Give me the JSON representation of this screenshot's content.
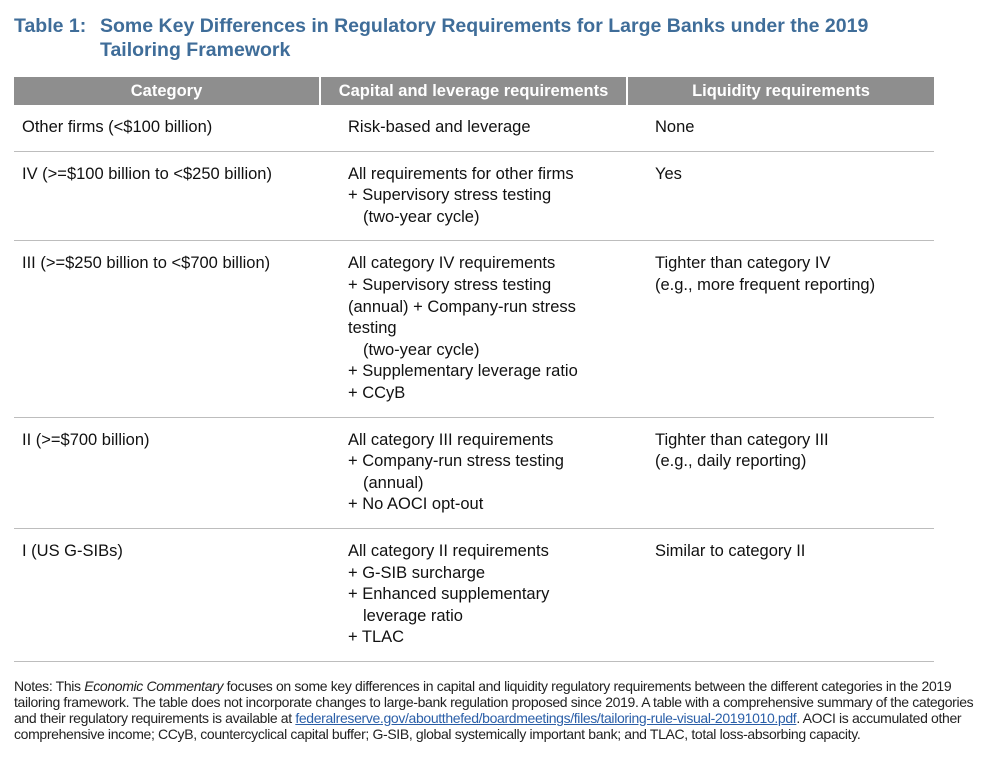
{
  "title": {
    "label": "Table 1:",
    "text": "Some Key Differences in Regulatory Requirements for Large Banks under the 2019 Tailoring Framework"
  },
  "table": {
    "header": [
      "Category",
      "Capital and leverage requirements",
      "Liquidity requirements"
    ],
    "rows": [
      [
        [
          "Other firms (<$100 billion)"
        ],
        [
          "Risk-based and leverage"
        ],
        [
          "None"
        ]
      ],
      [
        [
          "IV (>=$100 billion to <$250 billion)"
        ],
        [
          "All requirements for other firms",
          "+ Supervisory stress testing",
          "(two-year cycle)"
        ],
        [
          "Yes"
        ]
      ],
      [
        [
          "III (>=$250 billion to <$700 billion)"
        ],
        [
          "All category IV requirements",
          "+ Supervisory stress testing",
          "(annual) + Company-run stress",
          "testing",
          "(two-year cycle)",
          "+ Supplementary leverage ratio",
          "+ CCyB"
        ],
        [
          "Tighter than category IV",
          "(e.g., more frequent reporting)"
        ]
      ],
      [
        [
          "II (>=$700 billion)"
        ],
        [
          "All category III requirements",
          "+ Company-run stress testing",
          "(annual)",
          "+ No AOCI opt-out"
        ],
        [
          "Tighter than category III",
          "(e.g., daily reporting)"
        ]
      ],
      [
        [
          "I (US G-SIBs)"
        ],
        [
          "All category II requirements",
          "+ G-SIB surcharge",
          "+ Enhanced supplementary",
          "leverage ratio",
          "+ TLAC"
        ],
        [
          "Similar to category II"
        ]
      ]
    ]
  },
  "notes": [
    "Notes: This ",
    "Economic Commentary",
    " focuses on some key differences in capital and liquidity regulatory requirements between the different categories in the 2019 tailoring framework. The table does not incorporate changes to large-bank regulation proposed since 2019. A table with a comprehensive summary of the categories and their regulatory requirements is available at ",
    "federalreserve.gov/aboutthefed/boardmeetings/files/tailoring-rule-visual-20191010.pdf",
    ". AOCI is accumulated other comprehensive income; CCyB, countercyclical capital buffer; G-SIB, global systemically important bank; and TLAC, total loss-absorbing capacity."
  ]
}
